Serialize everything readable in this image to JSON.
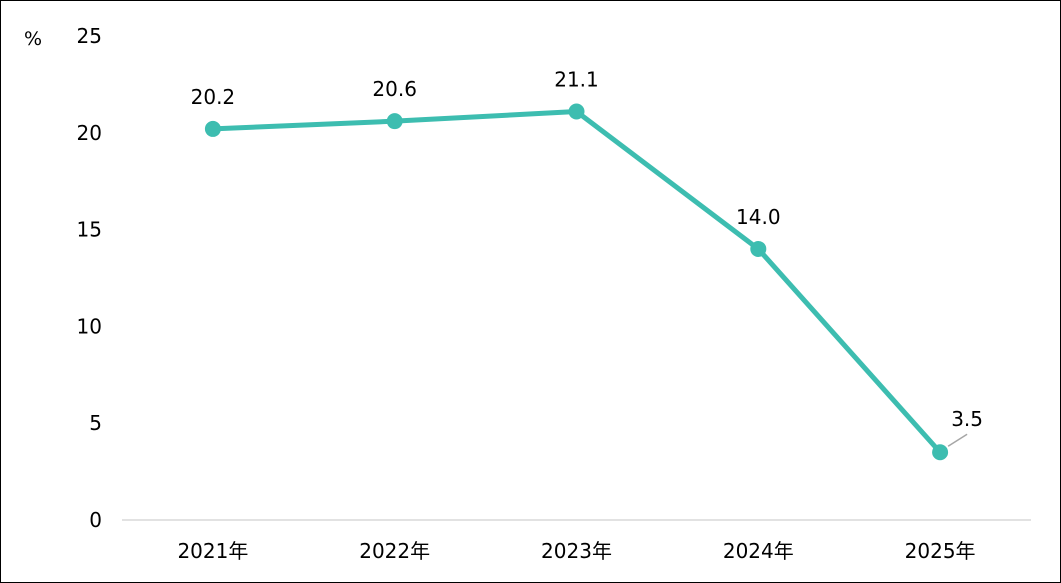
{
  "chart_data": {
    "type": "line",
    "unit_label": "%",
    "title": "",
    "xlabel": "",
    "ylabel": "%",
    "categories": [
      "2021年",
      "2022年",
      "2023年",
      "2024年",
      "2025年"
    ],
    "series": [
      {
        "values": [
          20.2,
          20.6,
          21.1,
          14.0,
          3.5
        ],
        "value_labels": [
          "20.2",
          "20.6",
          "21.1",
          "14.0",
          "3.5"
        ],
        "color": "#3dbdb0"
      }
    ],
    "ylim": [
      0,
      25
    ],
    "yticks": [
      0,
      5,
      10,
      15,
      20,
      25
    ],
    "grid": false,
    "legend": "none",
    "axis_color": "#d9d9d9"
  }
}
